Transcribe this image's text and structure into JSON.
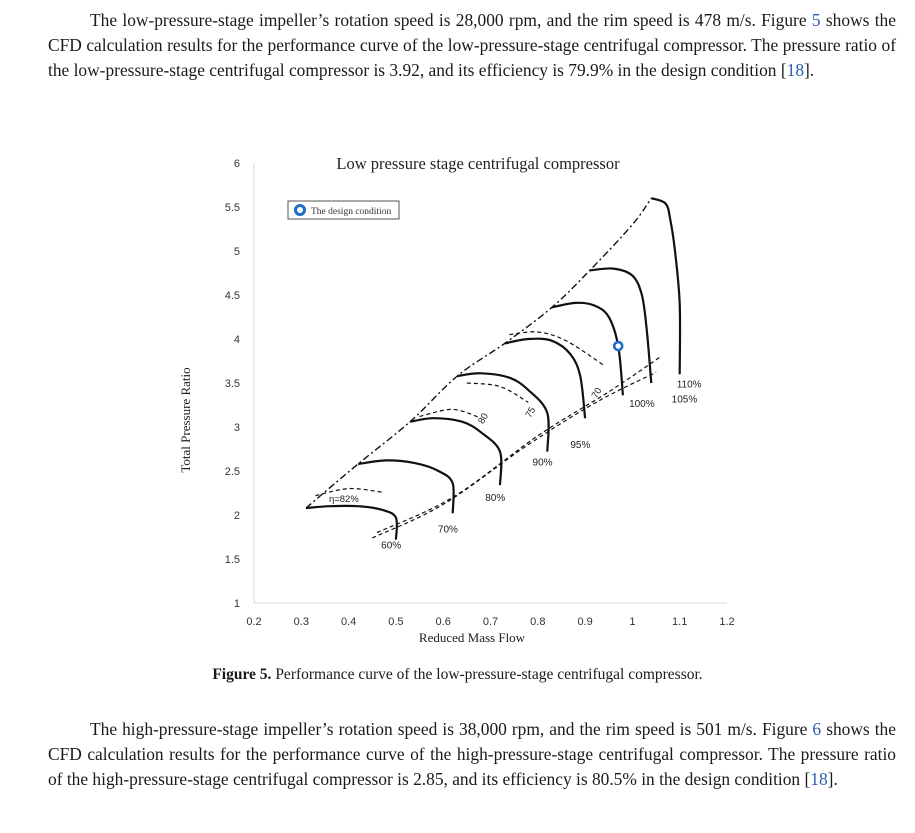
{
  "para1": {
    "s1": "The low-pressure-stage impeller’s rotation speed is 28,000 rpm, and the rim speed is 478 m/s.",
    "fig_word": "Figure",
    "fig_ref": "5",
    "s2": "shows the CFD calculation results for the performance curve of the low-pressure-stage centrifugal compressor. The pressure ratio of the low-pressure-stage centrifugal compressor is 3.92, and its efficiency is 79.9% in the design condition",
    "cite_open": "[",
    "cite": "18",
    "cite_close": "]."
  },
  "caption": {
    "label": "Figure 5.",
    "text": "Performance curve of the low-pressure-stage centrifugal compressor."
  },
  "para2": {
    "s1": "The high-pressure-stage impeller’s rotation speed is 38,000 rpm, and the rim speed is 501 m/s.",
    "fig_word": "Figure",
    "fig_ref": "6",
    "s2": "shows the CFD calculation results for the performance curve of the high-pressure-stage centrifugal compressor. The pressure ratio of the high-pressure-stage centrifugal compressor is 2.85, and its efficiency is 80.5% in the design condition",
    "cite_open": "[",
    "cite": "18",
    "cite_close": "]."
  },
  "chart_data": {
    "type": "line",
    "title": "Low pressure stage centrifugal compressor",
    "xlabel": "Reduced Mass Flow",
    "ylabel": "Total Pressure Ratio",
    "x_ticks": [
      "0.2",
      "0.3",
      "0.4",
      "0.5",
      "0.6",
      "0.7",
      "0.8",
      "0.9",
      "1",
      "1.1",
      "1.2"
    ],
    "y_ticks": [
      "1",
      "1.5",
      "2",
      "2.5",
      "3",
      "3.5",
      "4",
      "4.5",
      "5",
      "5.5",
      "6"
    ],
    "xlim": [
      0.2,
      1.2
    ],
    "ylim": [
      1,
      6
    ],
    "grid": false,
    "legend": {
      "position": "top-left",
      "entries": [
        "The design condition"
      ]
    },
    "design_point": {
      "x": 0.97,
      "y": 3.92
    },
    "speed_lines": [
      {
        "label": "60%",
        "x": [
          0.31,
          0.36,
          0.42,
          0.47,
          0.5,
          0.5
        ],
        "y": [
          2.08,
          2.1,
          2.1,
          2.06,
          1.97,
          1.72
        ]
      },
      {
        "label": "70%",
        "x": [
          0.42,
          0.48,
          0.54,
          0.59,
          0.62,
          0.62
        ],
        "y": [
          2.58,
          2.62,
          2.59,
          2.5,
          2.36,
          2.02
        ]
      },
      {
        "label": "80%",
        "x": [
          0.53,
          0.58,
          0.64,
          0.68,
          0.72,
          0.72
        ],
        "y": [
          3.06,
          3.1,
          3.06,
          2.94,
          2.72,
          2.34
        ]
      },
      {
        "label": "90%",
        "x": [
          0.63,
          0.68,
          0.74,
          0.78,
          0.82,
          0.82
        ],
        "y": [
          3.58,
          3.61,
          3.56,
          3.42,
          3.16,
          2.72
        ]
      },
      {
        "label": "95%",
        "x": [
          0.73,
          0.78,
          0.83,
          0.87,
          0.89,
          0.9
        ],
        "y": [
          3.95,
          4.0,
          3.98,
          3.82,
          3.57,
          3.1
        ]
      },
      {
        "label": "100%",
        "x": [
          0.83,
          0.88,
          0.92,
          0.95,
          0.97,
          0.98
        ],
        "y": [
          4.36,
          4.41,
          4.38,
          4.25,
          3.92,
          3.36
        ]
      },
      {
        "label": "105%",
        "x": [
          0.91,
          0.96,
          1.0,
          1.02,
          1.03,
          1.04
        ],
        "y": [
          4.78,
          4.8,
          4.72,
          4.5,
          4.12,
          3.5
        ]
      },
      {
        "label": "110%",
        "x": [
          1.04,
          1.07,
          1.08,
          1.09,
          1.1,
          1.1
        ],
        "y": [
          5.6,
          5.54,
          5.36,
          5.0,
          4.4,
          3.6
        ]
      }
    ],
    "surge_line": {
      "x": [
        0.31,
        0.42,
        0.53,
        0.63,
        0.73,
        0.83,
        0.91,
        1.0,
        1.04
      ],
      "y": [
        2.08,
        2.58,
        3.06,
        3.58,
        3.95,
        4.36,
        4.78,
        5.3,
        5.6
      ]
    },
    "efficiency_contours": [
      {
        "label": "η=82%",
        "x": [
          0.33,
          0.4,
          0.47
        ],
        "y": [
          2.22,
          2.3,
          2.26
        ]
      },
      {
        "label": "80",
        "x": [
          0.55,
          0.62,
          0.68
        ],
        "y": [
          3.12,
          3.2,
          3.1
        ]
      },
      {
        "label": "75",
        "x": [
          0.65,
          0.72,
          0.78
        ],
        "y": [
          3.5,
          3.46,
          3.28
        ]
      },
      {
        "label": "70",
        "x": [
          0.74,
          0.8,
          0.86,
          0.94
        ],
        "y": [
          4.05,
          4.08,
          3.98,
          3.7
        ]
      }
    ],
    "choke_lines": [
      {
        "x": [
          0.45,
          0.6,
          0.78,
          0.93,
          1.05
        ],
        "y": [
          1.74,
          2.12,
          2.8,
          3.3,
          3.62
        ]
      },
      {
        "x": [
          0.46,
          0.62,
          0.8,
          0.95,
          1.06
        ],
        "y": [
          1.8,
          2.2,
          2.9,
          3.4,
          3.8
        ]
      }
    ],
    "annotations": [
      "60%",
      "70%",
      "80%",
      "90%",
      "95%",
      "100%",
      "105%",
      "110%",
      "η=82%",
      "80",
      "75",
      "70"
    ]
  }
}
